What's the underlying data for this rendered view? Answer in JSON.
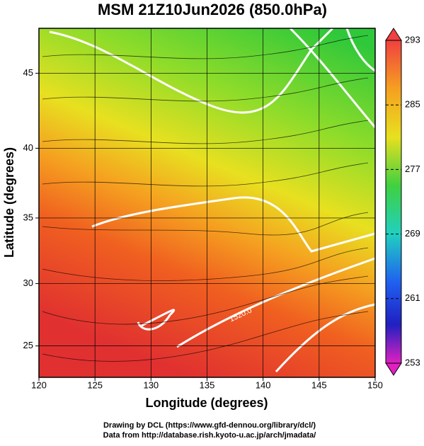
{
  "title": "MSM 21Z10Jun2026 (850.0hPa)",
  "x_axis": {
    "label": "Longitude (degrees)",
    "xlim": [
      120,
      150
    ],
    "xticks": [
      120,
      125,
      130,
      135,
      140,
      145,
      150
    ]
  },
  "y_axis": {
    "label": "Latitude  (degrees)",
    "ylim": [
      22.4,
      47.8
    ],
    "yticks": [
      25,
      30,
      35,
      40,
      45
    ]
  },
  "colorbar": {
    "lim": [
      253,
      293
    ],
    "ticks": [
      253,
      261,
      269,
      277,
      285,
      293
    ]
  },
  "contour_label": "1520.0",
  "footer": [
    "Drawing by DCL (https://www.gfd-dennou.org/library/dcl/)",
    "Data from http://database.rish.kyoto-u.ac.jp/arch/jmadata/"
  ]
}
